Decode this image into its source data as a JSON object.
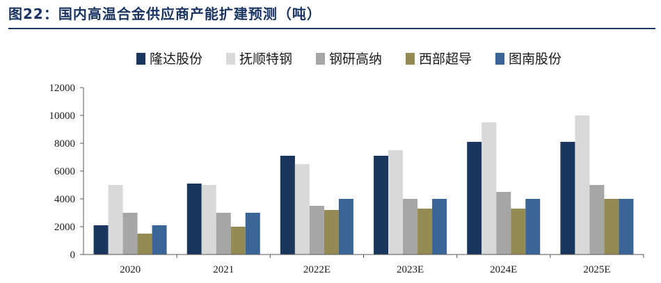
{
  "figure": {
    "title": "图22：国内高温合金供应商产能扩建预测（吨）"
  },
  "colors": {
    "title": "#1a3562",
    "axis": "#555555"
  },
  "chart_data": {
    "type": "bar",
    "title": "",
    "xlabel": "",
    "ylabel": "",
    "categories": [
      "2020",
      "2021",
      "2022E",
      "2023E",
      "2024E",
      "2025E"
    ],
    "ylim": [
      0,
      12000
    ],
    "yticks": [
      0,
      2000,
      4000,
      6000,
      8000,
      10000,
      12000
    ],
    "grid": false,
    "legend_position": "top",
    "series": [
      {
        "name": "隆达股份",
        "color": "#1b365d",
        "values": [
          2100,
          5100,
          7100,
          7100,
          8100,
          8100
        ]
      },
      {
        "name": "抚顺特钢",
        "color": "#d9d9d9",
        "values": [
          5000,
          5000,
          6500,
          7500,
          9500,
          10000
        ]
      },
      {
        "name": "钢研高纳",
        "color": "#a6a6a6",
        "values": [
          3000,
          3000,
          3500,
          4000,
          4500,
          5000
        ]
      },
      {
        "name": "西部超导",
        "color": "#948a54",
        "values": [
          1500,
          2000,
          3200,
          3300,
          3300,
          4000
        ]
      },
      {
        "name": "图南股份",
        "color": "#3a6596",
        "values": [
          2100,
          3000,
          4000,
          4000,
          4000,
          4000
        ]
      }
    ]
  }
}
